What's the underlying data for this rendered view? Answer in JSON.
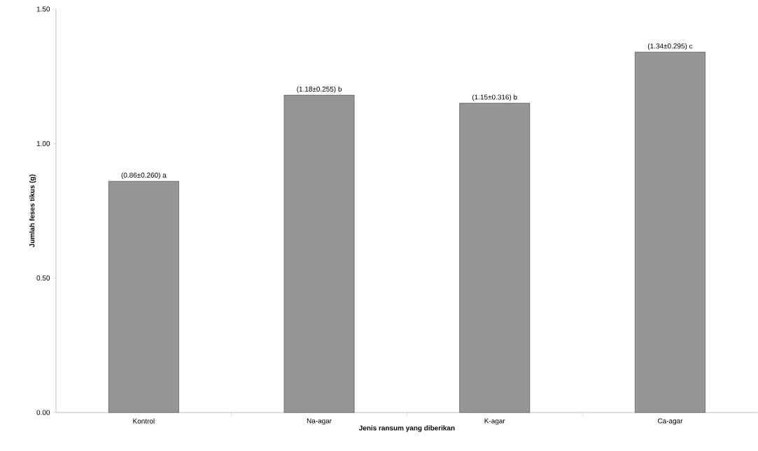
{
  "chart_data": {
    "type": "bar",
    "xlabel": "Jenis ransum yang diberikan",
    "ylabel": "Jumlah feses tikus (g)",
    "categories": [
      "Kontrol",
      "Na-agar",
      "K-agar",
      "Ca-agar"
    ],
    "values": [
      0.86,
      1.18,
      1.15,
      1.34
    ],
    "value_labels": [
      "(0.86±0.260) a",
      "(1.18±0.255) b",
      "(1.15±0.316) b",
      "(1.34±0.295) c"
    ],
    "color": "#969696",
    "ylim": [
      0,
      1.5
    ],
    "yticks": [
      {
        "value": 0,
        "label": "0.00"
      },
      {
        "value": 0.5,
        "label": "0.50"
      },
      {
        "value": 1.0,
        "label": "1.00"
      },
      {
        "value": 1.5,
        "label": "1.50"
      }
    ]
  }
}
